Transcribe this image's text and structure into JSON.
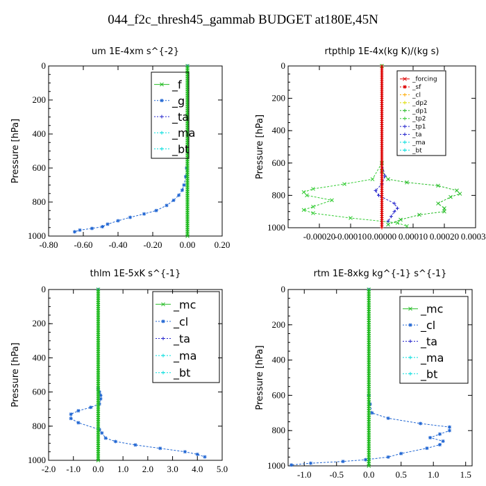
{
  "title": "044_f2c_thresh45_gammab  BUDGET at180E,45N",
  "colors": {
    "green": "#22bb22",
    "lime": "#33cc33",
    "blue": "#1e64d2",
    "darkblue": "#2222cc",
    "cyan": "#00dddd",
    "red": "#dd0000",
    "orange": "#ffaa00",
    "yellow": "#dddd00"
  },
  "chart_data": [
    {
      "id": "um",
      "type": "line",
      "title": "um   1E-4xm s^{-2}",
      "ylabel": "Pressure [hPa]",
      "xlim": [
        -0.8,
        0.2
      ],
      "ylim": [
        0,
        1000
      ],
      "y_inverted": true,
      "xticks": [
        "-0.80",
        "-0.60",
        "-0.40",
        "-0.20",
        "0.00",
        "0.20"
      ],
      "yticks": [
        "0",
        "200",
        "400",
        "600",
        "800",
        "1000"
      ],
      "legend": {
        "position": "top-right",
        "entries": [
          "_f",
          "_g",
          "_ta",
          "_ma",
          "_bt"
        ]
      },
      "series": [
        {
          "name": "_g",
          "color": "blue",
          "marker": "star",
          "x": [
            0,
            0,
            -0.005,
            -0.01,
            -0.02,
            -0.03,
            -0.05,
            -0.08,
            -0.12,
            -0.18,
            -0.25,
            -0.33,
            -0.4,
            -0.46,
            -0.49,
            -0.55,
            -0.62,
            -0.65
          ],
          "y": [
            0,
            500,
            600,
            650,
            700,
            730,
            760,
            790,
            820,
            850,
            870,
            890,
            910,
            930,
            945,
            955,
            965,
            975
          ]
        },
        {
          "name": "_f",
          "color": "green",
          "marker": "x",
          "x": [
            0,
            0
          ],
          "y": [
            0,
            1000
          ]
        }
      ]
    },
    {
      "id": "rtpthlp",
      "type": "line",
      "title": "rtpthlp   1E-4x(kg K)/(kg s)",
      "ylabel": "Pressure [hPa]",
      "xlim": [
        -0.0003,
        0.0003
      ],
      "ylim": [
        0,
        1000
      ],
      "y_inverted": true,
      "xticks": [
        "-0.00020",
        "-0.00010",
        "0.00000",
        "0.00010",
        "0.00020",
        "0.00030"
      ],
      "yticks": [
        "0",
        "200",
        "400",
        "600",
        "800",
        "1000"
      ],
      "legend": {
        "position": "top-right",
        "entries": [
          "_forcing",
          "_sf",
          "_cl",
          "_dp2",
          "_dp1",
          "_tp2",
          "_tp1",
          "_ta",
          "_ma",
          "_bt"
        ]
      },
      "series": [
        {
          "name": "_dp1",
          "color": "green",
          "marker": "x",
          "x": [
            0,
            0,
            0,
            2e-05,
            8e-05,
            0.00018,
            0.00024,
            0.00025,
            0.00022,
            0.00018,
            0.0002,
            0.0002,
            0.00012,
            6e-05,
            2e-05
          ],
          "y": [
            0,
            600,
            650,
            700,
            720,
            740,
            770,
            790,
            810,
            850,
            880,
            900,
            920,
            950,
            980
          ]
        },
        {
          "name": "_tp2",
          "color": "lime",
          "marker": "x",
          "x": [
            0,
            0,
            -3e-05,
            -0.00012,
            -0.00022,
            -0.00025,
            -0.00024,
            -0.00016,
            -0.00022,
            -0.00025,
            -0.00022,
            -0.0001,
            5e-05,
            8e-05
          ],
          "y": [
            0,
            600,
            700,
            730,
            760,
            780,
            800,
            830,
            870,
            890,
            910,
            940,
            970,
            990
          ]
        },
        {
          "name": "_tp1",
          "color": "darkblue",
          "marker": "plus",
          "x": [
            0,
            0,
            1e-05,
            0,
            -2e-05,
            -1e-05,
            4e-05,
            5e-05,
            4e-05,
            3e-05,
            2e-05
          ],
          "y": [
            0,
            600,
            680,
            730,
            770,
            800,
            850,
            880,
            900,
            930,
            960
          ]
        },
        {
          "name": "_forcing",
          "color": "red",
          "marker": "plus",
          "x": [
            0,
            0
          ],
          "y": [
            0,
            1000
          ]
        }
      ]
    },
    {
      "id": "thlm",
      "type": "line",
      "title": "thlm   1E-5xK s^{-1}",
      "ylabel": "Pressure [hPa]",
      "xlim": [
        -2.0,
        5.0
      ],
      "ylim": [
        0,
        1000
      ],
      "y_inverted": true,
      "xticks": [
        "-2.0",
        "-1.0",
        "0.0",
        "1.0",
        "2.0",
        "3.0",
        "4.0",
        "5.0"
      ],
      "yticks": [
        "0",
        "200",
        "400",
        "600",
        "800",
        "1000"
      ],
      "legend": {
        "position": "top-right",
        "entries": [
          "_mc",
          "_cl",
          "_ta",
          "_ma",
          "_bt"
        ]
      },
      "series": [
        {
          "name": "_cl",
          "color": "blue",
          "marker": "star",
          "x": [
            0,
            0,
            0.05,
            0.1,
            0.1,
            0.05,
            -0.3,
            -0.8,
            -1.1,
            -1.1,
            -0.8,
            0.05,
            0.15,
            0.3,
            0.7,
            1.5,
            2.5,
            3.5,
            4.0,
            4.3
          ],
          "y": [
            0,
            580,
            600,
            620,
            640,
            670,
            690,
            710,
            730,
            755,
            780,
            820,
            840,
            870,
            890,
            910,
            930,
            950,
            965,
            980
          ]
        },
        {
          "name": "_mc",
          "color": "green",
          "marker": "x",
          "x": [
            0,
            0
          ],
          "y": [
            0,
            1000
          ]
        }
      ]
    },
    {
      "id": "rtm",
      "type": "line",
      "title": "rtm   1E-8xkg kg^{-1} s^{-1}",
      "ylabel": "Pressure [hPa]",
      "xlim": [
        -1.25,
        1.6
      ],
      "ylim": [
        0,
        1000
      ],
      "y_inverted": true,
      "xticks": [
        "-1.0",
        "-0.5",
        "0.0",
        "0.5",
        "1.0",
        "1.5"
      ],
      "yticks": [
        "0",
        "200",
        "400",
        "600",
        "800",
        "1000"
      ],
      "legend": {
        "position": "top-right",
        "entries": [
          "_mc",
          "_cl",
          "_ta",
          "_ma",
          "_bt"
        ]
      },
      "series": [
        {
          "name": "_cl",
          "color": "blue",
          "marker": "star",
          "x": [
            0,
            0,
            0.02,
            0.05,
            0.3,
            0.8,
            1.25,
            1.25,
            1.1,
            0.95,
            1.15,
            1.1,
            0.9,
            0.5,
            0.3,
            -0.05,
            -0.4,
            -0.9,
            -1.2
          ],
          "y": [
            0,
            600,
            650,
            700,
            730,
            760,
            780,
            800,
            820,
            840,
            860,
            880,
            900,
            930,
            950,
            965,
            975,
            985,
            995
          ]
        },
        {
          "name": "_mc",
          "color": "green",
          "marker": "x",
          "x": [
            0,
            0
          ],
          "y": [
            0,
            1000
          ]
        }
      ]
    }
  ]
}
